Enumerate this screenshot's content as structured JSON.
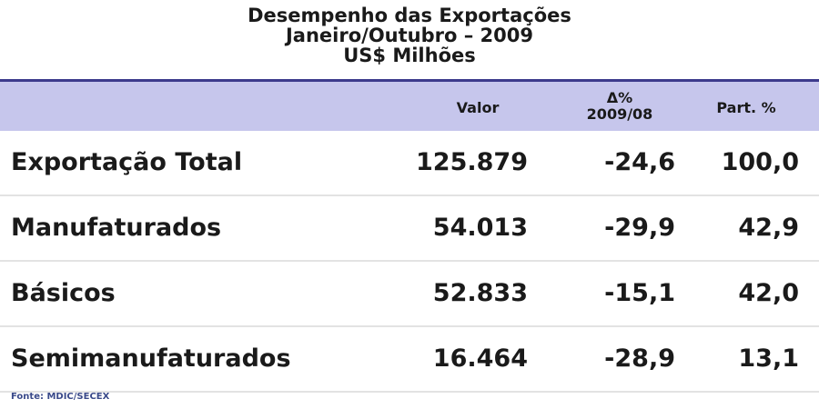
{
  "chart_data": {
    "type": "table",
    "title_lines": [
      "Desempenho das Exportações",
      "Janeiro/Outubro – 2009",
      "US$ Milhões"
    ],
    "columns": {
      "valor": "Valor",
      "delta_symbol": "Δ%",
      "delta_period": "2009/08",
      "part": "Part. %"
    },
    "rows": [
      {
        "label": "Exportação Total",
        "valor": "125.879",
        "delta": "-24,6",
        "part": "100,0"
      },
      {
        "label": "Manufaturados",
        "valor": "54.013",
        "delta": "-29,9",
        "part": "42,9"
      },
      {
        "label": "Básicos",
        "valor": "52.833",
        "delta": "-15,1",
        "part": "42,0"
      },
      {
        "label": "Semimanufaturados",
        "valor": "16.464",
        "delta": "-28,9",
        "part": "13,1"
      }
    ],
    "source": "Fonte: MDIC/SECEX"
  },
  "colors": {
    "header_band": "#c6c6ec",
    "header_rule": "#3c3a8c",
    "row_divider": "#e3e3e3",
    "source_text": "#3a4a8a"
  }
}
